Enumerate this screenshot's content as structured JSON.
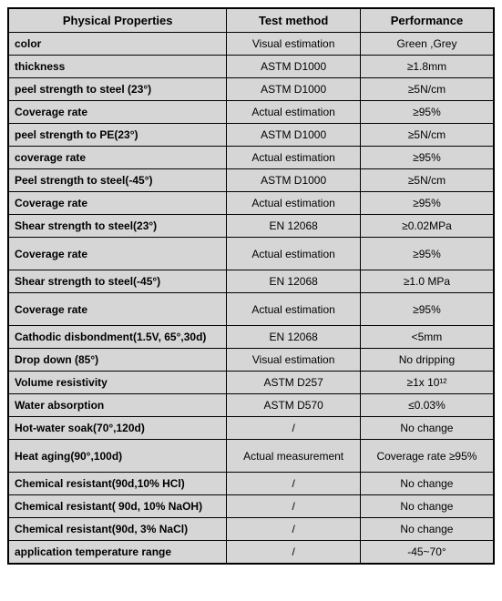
{
  "table": {
    "headers": [
      "Physical Properties",
      "Test method",
      "Performance"
    ],
    "rows": [
      {
        "prop": "color",
        "method": "Visual estimation",
        "perf": "Green ,Grey",
        "tall": false
      },
      {
        "prop": "thickness",
        "method": "ASTM D1000",
        "perf": "≥1.8mm",
        "tall": false
      },
      {
        "prop": "peel strength to steel (23°)",
        "method": "ASTM D1000",
        "perf": "≥5N/cm",
        "tall": false
      },
      {
        "prop": "Coverage rate",
        "method": "Actual estimation",
        "perf": "≥95%",
        "tall": false
      },
      {
        "prop": "peel strength to PE(23°)",
        "method": "ASTM D1000",
        "perf": "≥5N/cm",
        "tall": false
      },
      {
        "prop": "coverage rate",
        "method": "Actual estimation",
        "perf": "≥95%",
        "tall": false
      },
      {
        "prop": "Peel strength to steel(-45°)",
        "method": "ASTM D1000",
        "perf": "≥5N/cm",
        "tall": false
      },
      {
        "prop": "Coverage rate",
        "method": "Actual estimation",
        "perf": "≥95%",
        "tall": false
      },
      {
        "prop": "Shear strength to steel(23°)",
        "method": "EN 12068",
        "perf": "≥0.02MPa",
        "tall": false
      },
      {
        "prop": "Coverage rate",
        "method": "Actual estimation",
        "perf": "≥95%",
        "tall": true
      },
      {
        "prop": "Shear strength to steel(-45°)",
        "method": "EN 12068",
        "perf": "≥1.0 MPa",
        "tall": false
      },
      {
        "prop": "Coverage rate",
        "method": "Actual estimation",
        "perf": "≥95%",
        "tall": true
      },
      {
        "prop": "Cathodic disbondment(1.5V, 65°,30d)",
        "method": "EN 12068",
        "perf": "<5mm",
        "tall": false
      },
      {
        "prop": "Drop down (85°)",
        "method": "Visual estimation",
        "perf": "No dripping",
        "tall": false
      },
      {
        "prop": "Volume resistivity",
        "method": "ASTM D257",
        "perf": "≥1x 10¹²",
        "tall": false
      },
      {
        "prop": "Water absorption",
        "method": "ASTM D570",
        "perf": "≤0.03%",
        "tall": false
      },
      {
        "prop": "Hot-water soak(70°,120d)",
        "method": "/",
        "perf": "No change",
        "tall": false
      },
      {
        "prop": "Heat aging(90°,100d)",
        "method": "Actual measurement",
        "perf": "Coverage rate ≥95%",
        "tall": true
      },
      {
        "prop": "Chemical resistant(90d,10% HCl)",
        "method": "/",
        "perf": "No change",
        "tall": false
      },
      {
        "prop": "Chemical resistant( 90d, 10% NaOH)",
        "method": "/",
        "perf": "No change",
        "tall": false
      },
      {
        "prop": "Chemical resistant(90d, 3% NaCl)",
        "method": "/",
        "perf": "No change",
        "tall": false
      },
      {
        "prop": "application temperature range",
        "method": "/",
        "perf": "-45~70°",
        "tall": false
      }
    ],
    "colors": {
      "cell_bg": "#d6d6d6",
      "border": "#000000",
      "text": "#000000"
    }
  }
}
